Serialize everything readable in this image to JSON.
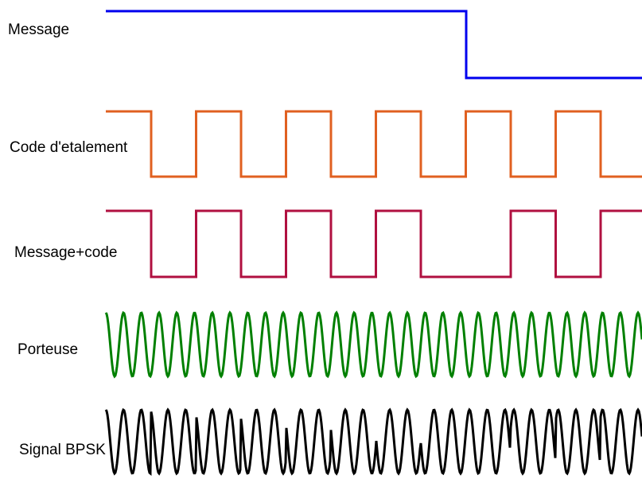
{
  "signals": [
    {
      "id": "message",
      "label": "Message",
      "color": "#0000ee",
      "kind": "digital",
      "levels": [
        1,
        0
      ]
    },
    {
      "id": "code",
      "label": "Code d'etalement",
      "color": "#e06020",
      "kind": "digital",
      "levels": [
        1,
        0,
        1,
        0,
        1,
        0,
        1,
        0,
        1,
        0,
        1,
        0
      ]
    },
    {
      "id": "message-code",
      "label": "Message+code",
      "color": "#b01040",
      "kind": "digital",
      "levels": [
        1,
        0,
        1,
        0,
        1,
        0,
        1,
        0,
        0,
        1,
        0,
        1
      ]
    },
    {
      "id": "carrier",
      "label": "Porteuse",
      "color": "#008000",
      "kind": "sine"
    },
    {
      "id": "bpsk",
      "label": "Signal BPSK",
      "color": "#000000",
      "kind": "bpsk"
    }
  ]
}
